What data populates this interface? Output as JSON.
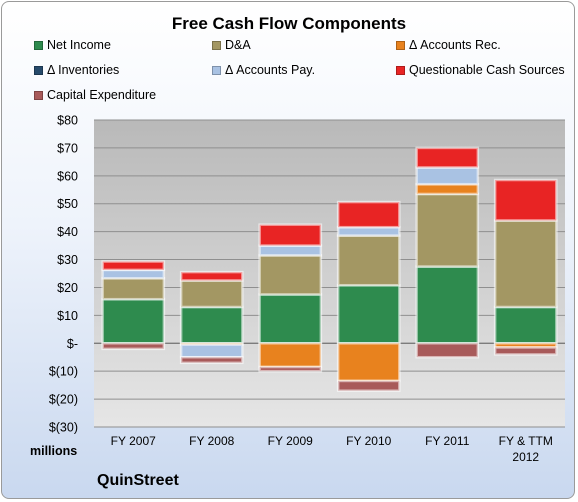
{
  "chart_data": {
    "type": "bar",
    "stacked": true,
    "title": "Free Cash Flow Components",
    "unit_label": "millions",
    "company": "QuinStreet",
    "categories": [
      "FY 2007",
      "FY 2008",
      "FY 2009",
      "FY 2010",
      "FY 2011",
      "FY & TTM 2012"
    ],
    "category_lines": [
      [
        "FY 2007"
      ],
      [
        "FY 2008"
      ],
      [
        "FY 2009"
      ],
      [
        "FY 2010"
      ],
      [
        "FY 2011"
      ],
      [
        "FY & TTM",
        "2012"
      ]
    ],
    "ylim": [
      -30,
      80
    ],
    "yticks": [
      -30,
      -20,
      -10,
      0,
      10,
      20,
      30,
      40,
      50,
      60,
      70,
      80
    ],
    "ytick_labels": [
      "$(30)",
      "$(20)",
      "$(10)",
      "$-",
      "$10",
      "$20",
      "$30",
      "$40",
      "$50",
      "$60",
      "$70",
      "$80"
    ],
    "grid": true,
    "legend_position": "top",
    "series": [
      {
        "name": "Net Income",
        "color": "#2e8b4e",
        "values": [
          15.8,
          13.0,
          17.5,
          20.8,
          27.5,
          13.0
        ]
      },
      {
        "name": "D&A",
        "color": "#a39763",
        "values": [
          7.5,
          9.5,
          14.0,
          17.8,
          26.0,
          31.0
        ]
      },
      {
        "name": "Δ Accounts Rec.",
        "color": "#e8821e",
        "values": [
          0.0,
          -0.5,
          -8.5,
          -13.5,
          3.5,
          -1.5
        ]
      },
      {
        "name": "Δ Inventories",
        "color": "#264a6b",
        "values": [
          0.0,
          0.0,
          0.0,
          0.0,
          0.0,
          0.0
        ]
      },
      {
        "name": "Δ Accounts Pay.",
        "color": "#a9c2e3",
        "values": [
          3.0,
          -4.5,
          3.5,
          3.0,
          6.0,
          0.0
        ]
      },
      {
        "name": "Questionable Cash Sources",
        "color": "#e82424",
        "values": [
          3.0,
          3.0,
          7.5,
          9.0,
          7.0,
          14.5
        ]
      },
      {
        "name": "Capital Expenditure",
        "color": "#a85a5a",
        "values": [
          -2.0,
          -2.0,
          -1.5,
          -3.5,
          -5.0,
          -2.5
        ]
      }
    ]
  }
}
